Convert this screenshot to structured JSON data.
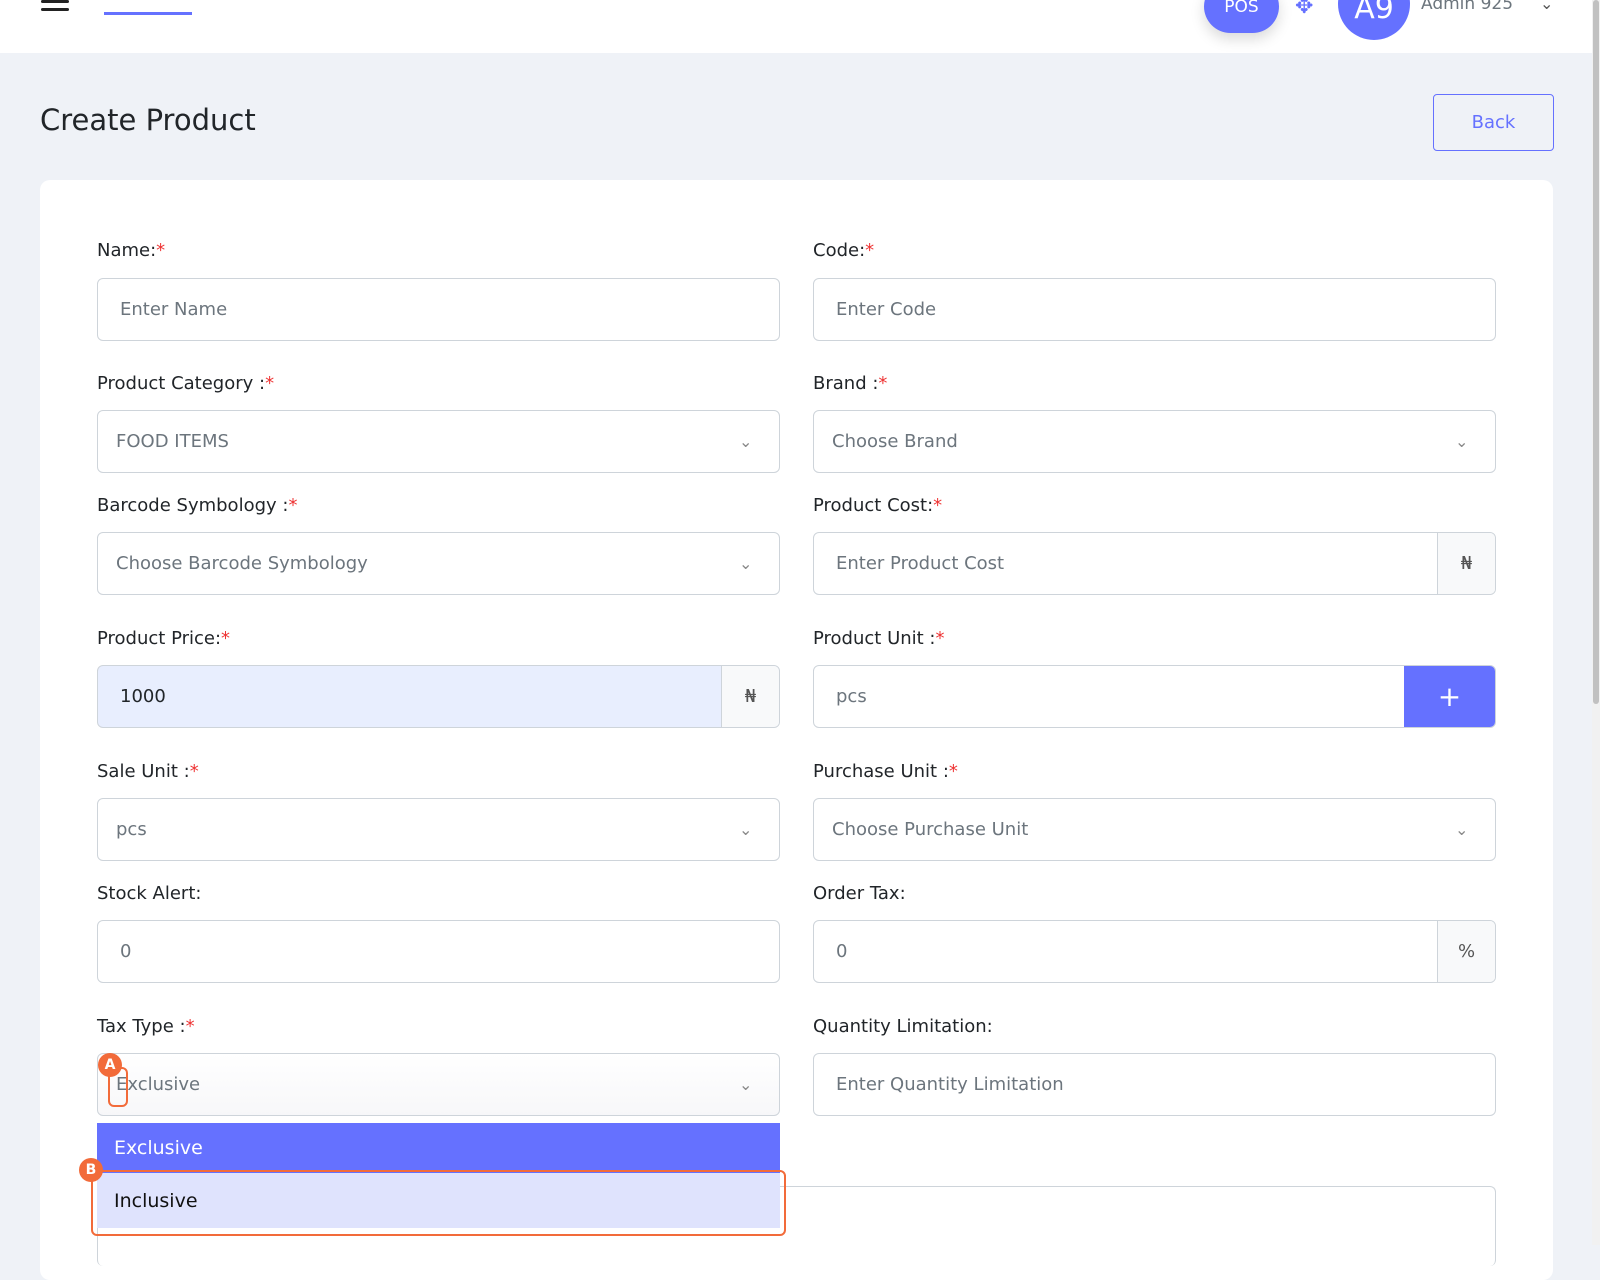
{
  "header": {
    "pos_label": "POS",
    "avatar_initials": "A9",
    "user_name": "Admin 925",
    "fullscreen_icon": "expand-arrows-icon",
    "menu_icon": "hamburger-icon"
  },
  "page": {
    "title": "Create Product",
    "back_label": "Back"
  },
  "form": {
    "name": {
      "label": "Name:",
      "placeholder": "Enter Name"
    },
    "code": {
      "label": "Code:",
      "placeholder": "Enter Code"
    },
    "category": {
      "label": "Product Category :",
      "value": "FOOD ITEMS"
    },
    "brand": {
      "label": "Brand :",
      "value": "Choose Brand"
    },
    "barcode": {
      "label": "Barcode Symbology :",
      "value": "Choose Barcode Symbology"
    },
    "cost": {
      "label": "Product Cost:",
      "placeholder": "Enter Product Cost",
      "addon": "₦"
    },
    "price": {
      "label": "Product Price:",
      "value": "1000",
      "addon": "₦"
    },
    "unit": {
      "label": "Product Unit :",
      "value": "pcs",
      "add": "+"
    },
    "sale_unit": {
      "label": "Sale Unit :",
      "value": "pcs"
    },
    "purchase_unit": {
      "label": "Purchase Unit :",
      "value": "Choose Purchase Unit"
    },
    "stock_alert": {
      "label": "Stock Alert:",
      "value": "0"
    },
    "order_tax": {
      "label": "Order Tax:",
      "value": "0",
      "addon": "%"
    },
    "tax_type": {
      "label": "Tax Type :",
      "value": "Exclusive",
      "options": [
        "Exclusive",
        "Inclusive"
      ]
    },
    "qty_limit": {
      "label": "Quantity Limitation:",
      "placeholder": "Enter Quantity Limitation"
    },
    "required": "*"
  },
  "annotations": {
    "a": "A",
    "b": "B",
    "color": "#f26b3a"
  },
  "colors": {
    "accent": "#6571ff"
  }
}
